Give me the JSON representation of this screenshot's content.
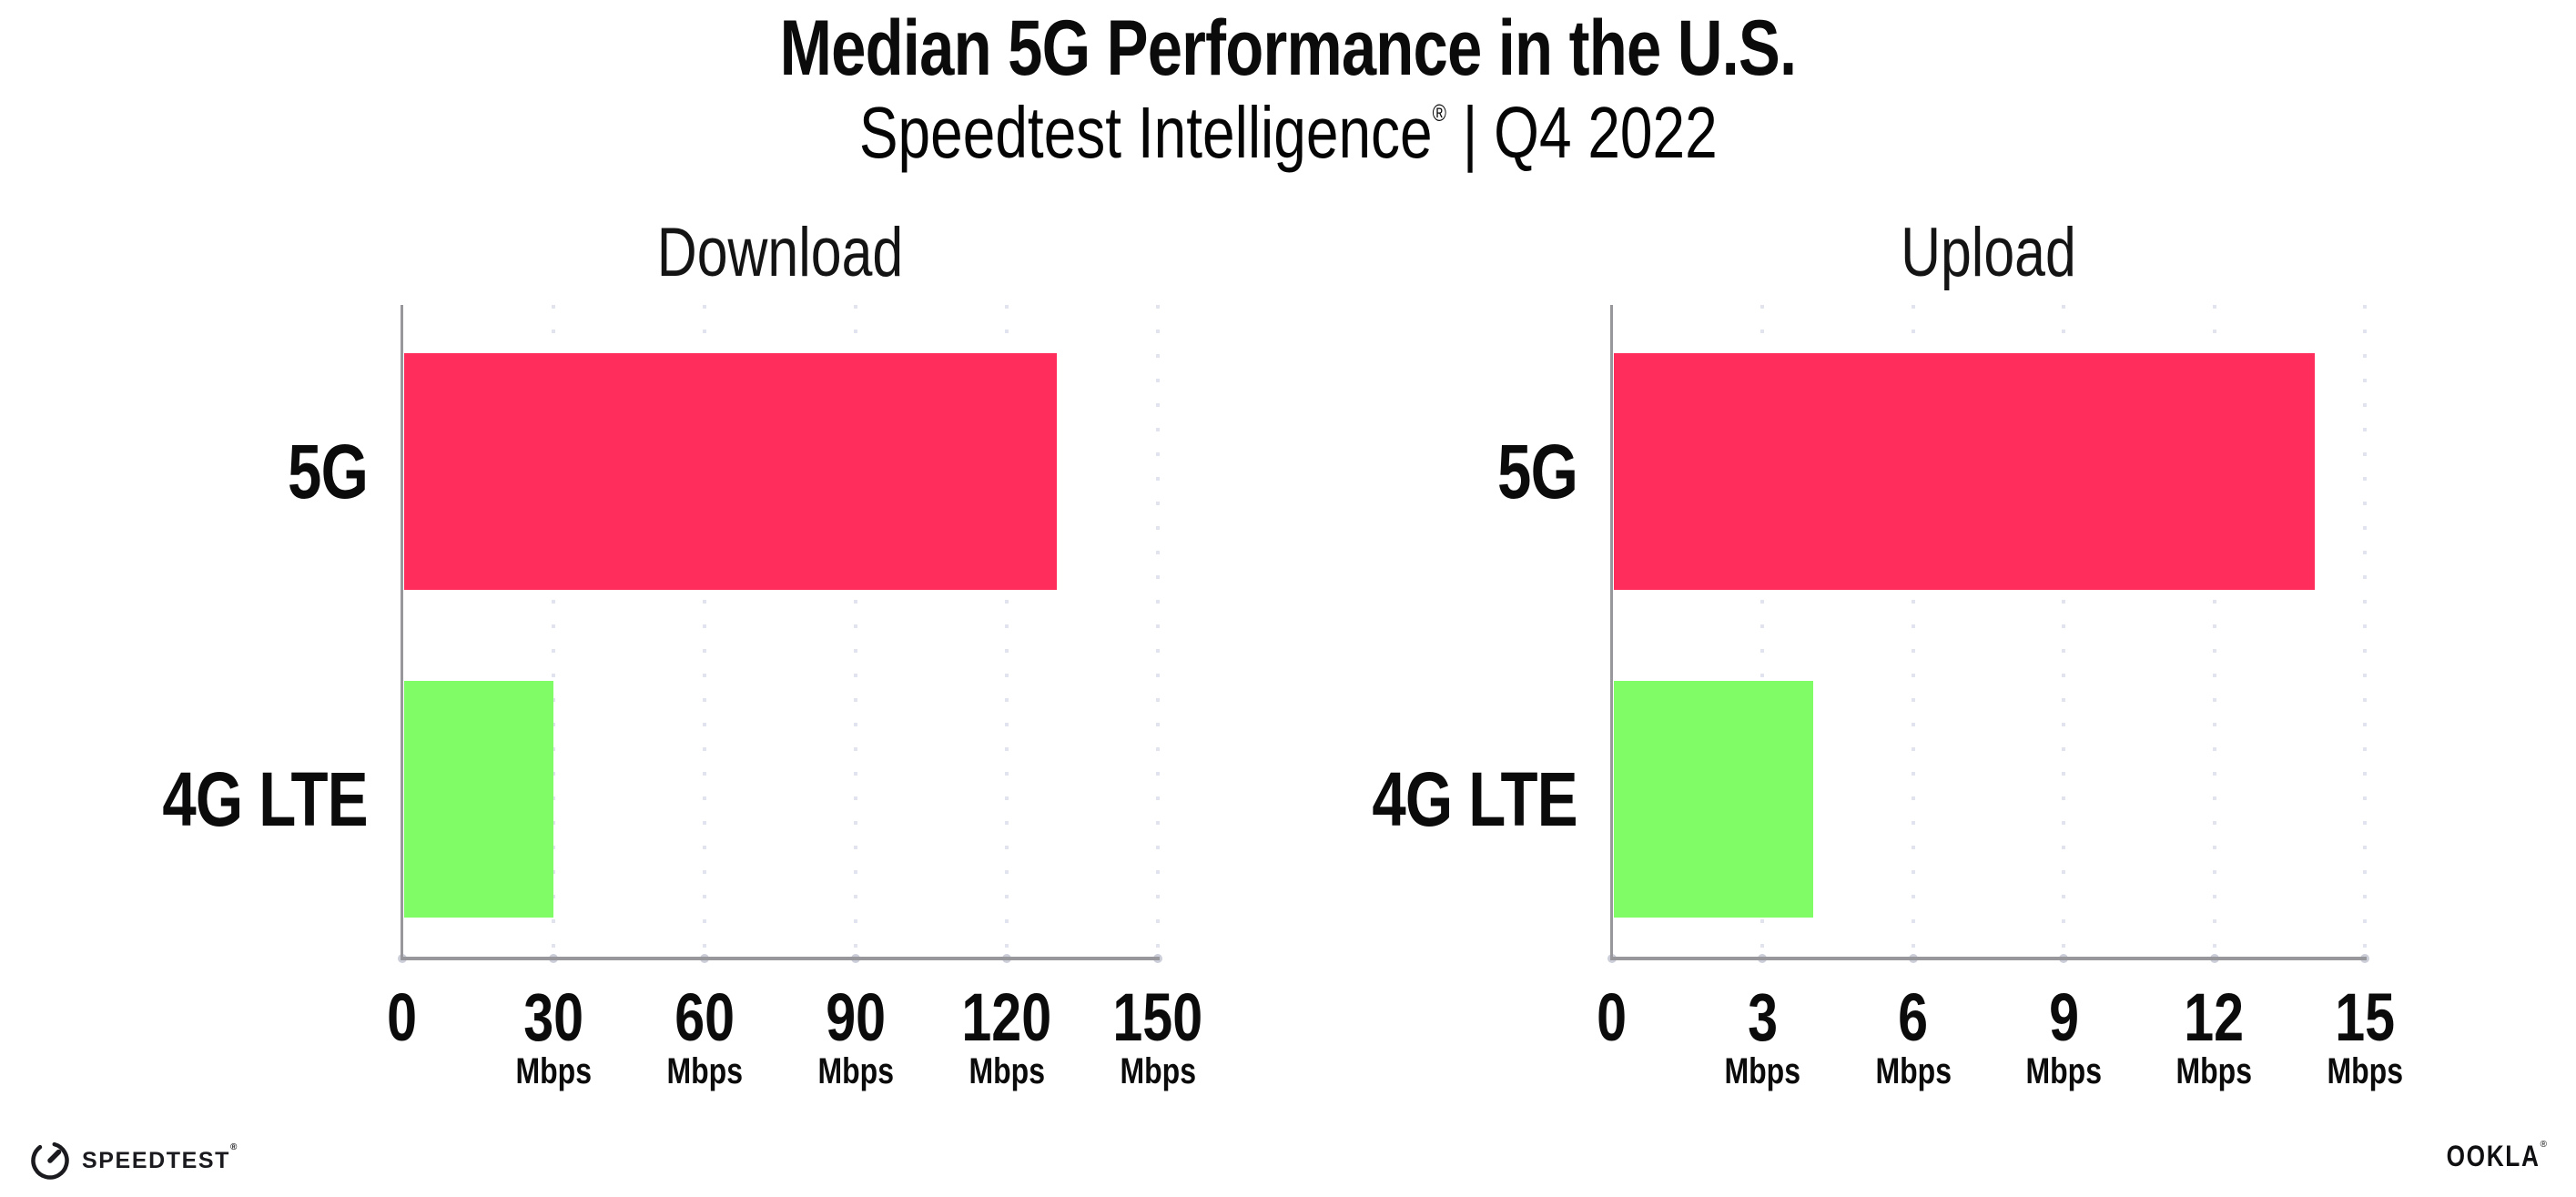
{
  "header": {
    "title": "Median 5G Performance in the U.S.",
    "subtitle_brand": "Speedtest Intelligence",
    "subtitle_reg": "®",
    "subtitle_rest": " | Q4 2022"
  },
  "colors": {
    "bar_5g": "#FF2D5C",
    "bar_4g_lte": "#80FC66",
    "axis_line": "#97979C",
    "gridline": "#E1E3EE",
    "tick_dot": "#CCCEDA",
    "text": "#0B0B0C"
  },
  "chart_data": [
    {
      "type": "bar",
      "orientation": "horizontal",
      "title": "Download",
      "categories": [
        "5G",
        "4G LTE"
      ],
      "values": [
        130,
        30
      ],
      "unit": "Mbps",
      "xlim": [
        0,
        150
      ],
      "xticks": [
        0,
        30,
        60,
        90,
        120,
        150
      ],
      "bar_colors": [
        "#FF2D5C",
        "#80FC66"
      ],
      "grid": "dotted-vertical",
      "legend": "none"
    },
    {
      "type": "bar",
      "orientation": "horizontal",
      "title": "Upload",
      "categories": [
        "5G",
        "4G LTE"
      ],
      "values": [
        14,
        4
      ],
      "unit": "Mbps",
      "xlim": [
        0,
        15
      ],
      "xticks": [
        0,
        3,
        6,
        9,
        12,
        15
      ],
      "bar_colors": [
        "#FF2D5C",
        "#80FC66"
      ],
      "grid": "dotted-vertical",
      "legend": "none"
    }
  ],
  "footer": {
    "speedtest_label": "SPEEDTEST",
    "speedtest_mark": "®",
    "ookla_label": "OOKLA",
    "ookla_mark": "®"
  }
}
